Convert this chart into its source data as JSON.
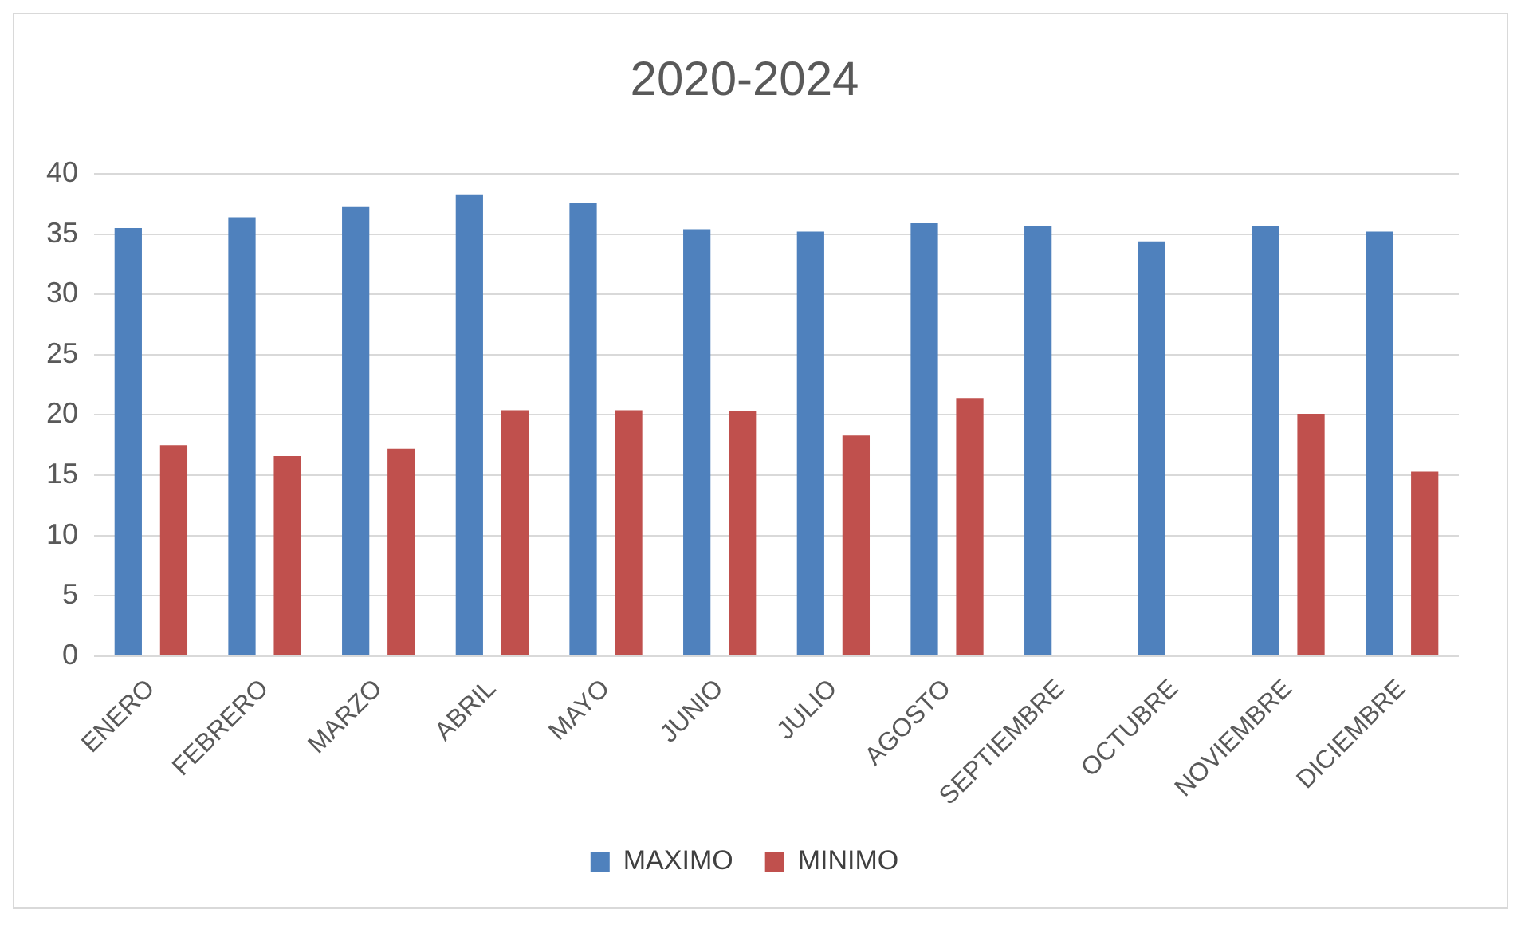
{
  "chart_data": {
    "type": "bar",
    "title": "2020-2024",
    "categories": [
      "ENERO",
      "FEBRERO",
      "MARZO",
      "ABRIL",
      "MAYO",
      "JUNIO",
      "JULIO",
      "AGOSTO",
      "SEPTIEMBRE",
      "OCTUBRE",
      "NOVIEMBRE",
      "DICIEMBRE"
    ],
    "series": [
      {
        "name": "MAXIMO",
        "color": "#4f81bd",
        "values": [
          35.5,
          36.4,
          37.3,
          38.3,
          37.6,
          35.4,
          35.2,
          35.9,
          35.7,
          34.4,
          35.7,
          35.2
        ]
      },
      {
        "name": "MINIMO",
        "color": "#c0504d",
        "values": [
          17.5,
          16.6,
          17.2,
          20.4,
          20.4,
          20.3,
          18.3,
          21.4,
          0,
          0,
          20.1,
          15.3
        ]
      }
    ],
    "ylim": [
      0,
      40
    ],
    "yticks": [
      0,
      5,
      10,
      15,
      20,
      25,
      30,
      35,
      40
    ],
    "grid": "y",
    "legend": "bottom"
  }
}
